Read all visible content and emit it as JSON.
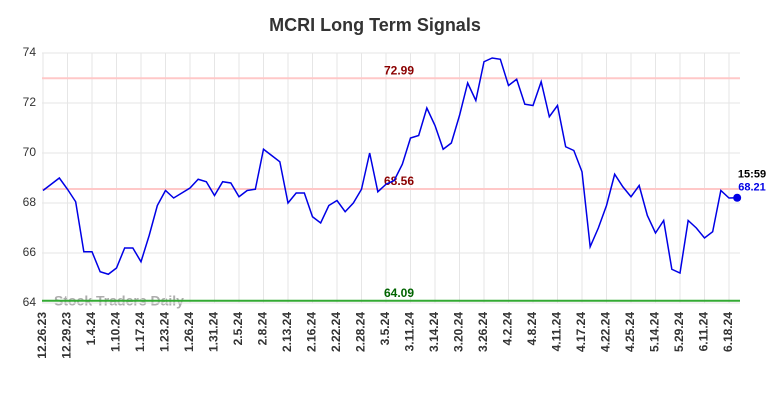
{
  "chart_data": {
    "type": "line",
    "title": "MCRI Long Term Signals",
    "categories": [
      "12.26.23",
      null,
      null,
      "12.29.23",
      null,
      null,
      "1.4.24",
      null,
      null,
      "1.10.24",
      null,
      null,
      "1.17.24",
      null,
      null,
      "1.23.24",
      null,
      null,
      "1.26.24",
      null,
      null,
      "1.31.24",
      null,
      null,
      "2.5.24",
      null,
      null,
      "2.8.24",
      null,
      null,
      "2.13.24",
      null,
      null,
      "2.16.24",
      null,
      null,
      "2.22.24",
      null,
      null,
      "2.28.24",
      null,
      null,
      "3.5.24",
      null,
      null,
      "3.11.24",
      null,
      null,
      "3.14.24",
      null,
      null,
      "3.20.24",
      null,
      null,
      "3.26.24",
      null,
      null,
      "4.2.24",
      null,
      null,
      "4.8.24",
      null,
      null,
      "4.11.24",
      null,
      null,
      "4.17.24",
      null,
      null,
      "4.22.24",
      null,
      null,
      "4.25.24",
      null,
      null,
      "5.14.24",
      null,
      null,
      "5.29.24",
      null,
      null,
      "6.11.24",
      null,
      null,
      "6.18.24",
      null
    ],
    "values": [
      68.5,
      68.75,
      69.0,
      68.55,
      68.05,
      66.05,
      66.05,
      65.25,
      65.15,
      65.4,
      66.2,
      66.2,
      65.65,
      66.7,
      67.9,
      68.5,
      68.2,
      68.4,
      68.6,
      68.95,
      68.85,
      68.3,
      68.85,
      68.8,
      68.25,
      68.5,
      68.55,
      70.15,
      69.9,
      69.65,
      68.0,
      68.4,
      68.4,
      67.45,
      67.2,
      67.9,
      68.1,
      67.65,
      68.0,
      68.55,
      70.0,
      68.45,
      68.75,
      68.9,
      69.55,
      70.6,
      70.7,
      71.8,
      71.1,
      70.15,
      70.4,
      71.5,
      72.8,
      72.1,
      73.65,
      73.8,
      73.75,
      72.7,
      72.95,
      71.95,
      71.9,
      72.85,
      71.45,
      71.9,
      70.25,
      70.1,
      69.25,
      66.25,
      67.0,
      67.9,
      69.15,
      68.65,
      68.25,
      68.7,
      67.5,
      66.8,
      67.3,
      65.35,
      65.2,
      67.3,
      67.0,
      66.6,
      66.85,
      68.5,
      68.2,
      68.21
    ],
    "color": "#0000e6",
    "ylim": [
      64,
      74
    ],
    "yticks": [
      64,
      66,
      68,
      70,
      72,
      74
    ],
    "grid": true,
    "reference_lines": [
      {
        "value": 72.99,
        "color": "#ffc8c8",
        "label_color": "#8b0000"
      },
      {
        "value": 68.56,
        "color": "#ffc8c8",
        "label_color": "#8b0000"
      },
      {
        "value": 64.09,
        "color": "#33aa33",
        "label_color": "#006400"
      }
    ],
    "last_time": "15:59",
    "watermark": "Stock Traders Daily"
  }
}
